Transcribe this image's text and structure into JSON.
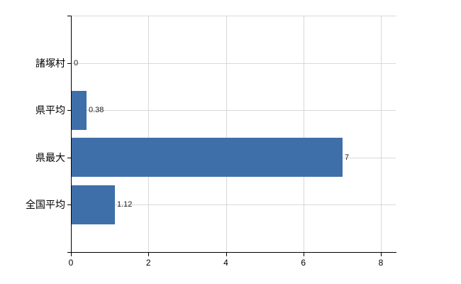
{
  "chart_data": {
    "type": "bar",
    "orientation": "horizontal",
    "title": "",
    "xlabel": "",
    "ylabel": "",
    "categories": [
      "諸塚村",
      "県平均",
      "県最大",
      "全国平均"
    ],
    "values": [
      0,
      0.38,
      7,
      1.12
    ],
    "value_labels": [
      "0",
      "0.38",
      "7",
      "1.12"
    ],
    "xlim": [
      0,
      8
    ],
    "xticks": [
      0,
      2,
      4,
      6,
      8
    ],
    "xtick_labels": [
      "0",
      "2",
      "4",
      "6",
      "8"
    ],
    "grid": true,
    "legend": "none",
    "colors": {
      "bar": "#3e6fa9",
      "gridline": "#d6dad6",
      "axis": "#000000",
      "category_label": "#000000",
      "value_label": "#1a1a1a",
      "background": "#ffffff"
    }
  }
}
